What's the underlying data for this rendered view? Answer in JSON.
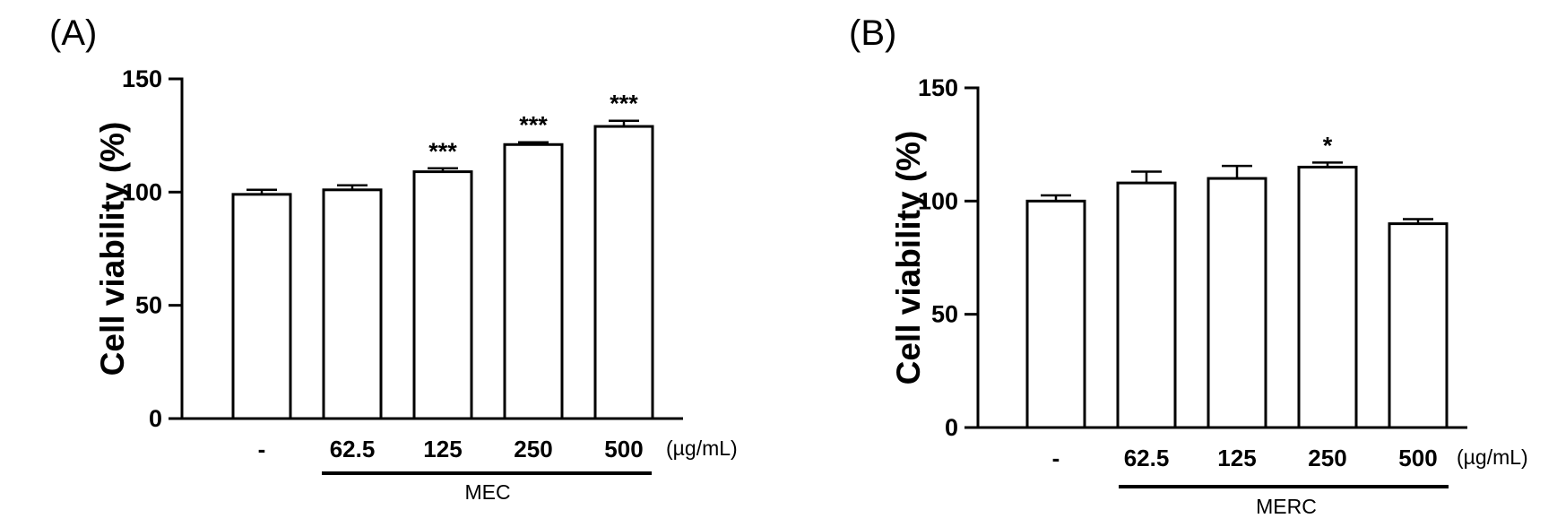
{
  "chart_data": [
    {
      "type": "bar",
      "panel": "(A)",
      "ylabel": "Cell viability (%)",
      "ylim": [
        0,
        150
      ],
      "yticks": [
        0,
        50,
        100,
        150
      ],
      "categories": [
        "-",
        "62.5",
        "125",
        "250",
        "500"
      ],
      "values": [
        99,
        101,
        109,
        121,
        129
      ],
      "errors": [
        2,
        2,
        1.5,
        1,
        2.5
      ],
      "significance": [
        "",
        "",
        "***",
        "***",
        "***"
      ],
      "unit_label": "(µg/mL)",
      "group_label": "MEC",
      "grid": false
    },
    {
      "type": "bar",
      "panel": "(B)",
      "ylabel": "Cell viability (%)",
      "ylim": [
        0,
        150
      ],
      "yticks": [
        0,
        50,
        100,
        150
      ],
      "categories": [
        "-",
        "62.5",
        "125",
        "250",
        "500"
      ],
      "values": [
        100,
        108,
        110,
        115,
        90
      ],
      "errors": [
        2.5,
        5,
        5.5,
        2,
        2
      ],
      "significance": [
        "",
        "",
        "",
        "*",
        ""
      ],
      "unit_label": "(µg/mL)",
      "group_label": "MERC",
      "grid": false
    }
  ]
}
